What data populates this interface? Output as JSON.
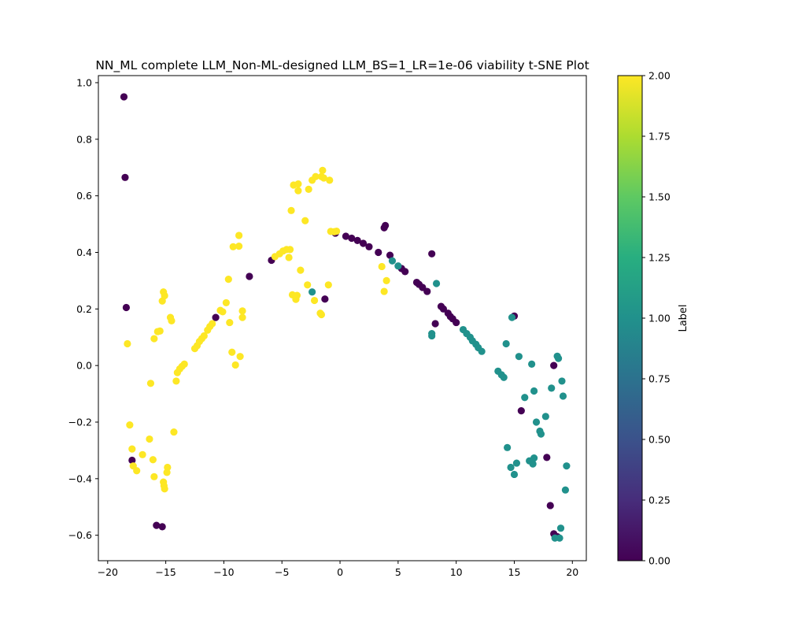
{
  "chart_data": {
    "type": "scatter",
    "title": "NN_ML complete LLM_Non-ML-designed LLM_BS=1_LR=1e-06 viability t-SNE Plot",
    "xlabel": "",
    "ylabel": "",
    "xlim": [
      -20.8,
      21.2
    ],
    "ylim": [
      -0.69,
      1.025
    ],
    "xticks": [
      -20,
      -15,
      -10,
      -5,
      0,
      5,
      10,
      15,
      20
    ],
    "xtick_labels": [
      "−20",
      "−15",
      "−10",
      "−5",
      "0",
      "5",
      "10",
      "15",
      "20"
    ],
    "yticks": [
      -0.6,
      -0.4,
      -0.2,
      0.0,
      0.2,
      0.4,
      0.6,
      0.8,
      1.0
    ],
    "ytick_labels": [
      "−0.6",
      "−0.4",
      "−0.2",
      "0.0",
      "0.2",
      "0.4",
      "0.6",
      "0.8",
      "1.0"
    ],
    "grid": false,
    "colormap": "viridis",
    "colorbar": {
      "label": "Label",
      "range": [
        0.0,
        2.0
      ],
      "ticks": [
        0.0,
        0.25,
        0.5,
        0.75,
        1.0,
        1.25,
        1.5,
        1.75,
        2.0
      ],
      "tick_labels": [
        "0.00",
        "0.25",
        "0.50",
        "0.75",
        "1.00",
        "1.25",
        "1.50",
        "1.75",
        "2.00"
      ]
    },
    "label_colors": {
      "0": "#440154",
      "1": "#21918c",
      "2": "#fde725"
    },
    "series": [
      {
        "label": 0,
        "points": [
          [
            -18.6,
            0.95
          ],
          [
            -18.5,
            0.665
          ],
          [
            -18.4,
            0.205
          ],
          [
            -17.9,
            -0.335
          ],
          [
            -15.8,
            -0.565
          ],
          [
            -15.3,
            -0.57
          ],
          [
            -10.7,
            0.17
          ],
          [
            -7.8,
            0.315
          ],
          [
            -5.9,
            0.372
          ],
          [
            -1.3,
            0.235
          ],
          [
            -0.4,
            0.468
          ],
          [
            0.5,
            0.457
          ],
          [
            1.0,
            0.45
          ],
          [
            1.5,
            0.442
          ],
          [
            2.0,
            0.432
          ],
          [
            2.5,
            0.42
          ],
          [
            3.3,
            0.4
          ],
          [
            3.8,
            0.487
          ],
          [
            3.9,
            0.495
          ],
          [
            4.3,
            0.39
          ],
          [
            5.3,
            0.343
          ],
          [
            5.6,
            0.332
          ],
          [
            6.6,
            0.294
          ],
          [
            6.8,
            0.287
          ],
          [
            7.1,
            0.276
          ],
          [
            7.5,
            0.262
          ],
          [
            7.9,
            0.395
          ],
          [
            8.2,
            0.148
          ],
          [
            8.7,
            0.209
          ],
          [
            8.9,
            0.2
          ],
          [
            9.3,
            0.185
          ],
          [
            9.5,
            0.173
          ],
          [
            9.7,
            0.165
          ],
          [
            10.0,
            0.152
          ],
          [
            15.0,
            0.175
          ],
          [
            15.6,
            -0.16
          ],
          [
            17.8,
            -0.325
          ],
          [
            18.1,
            -0.495
          ],
          [
            18.4,
            0.0
          ],
          [
            18.4,
            -0.595
          ],
          [
            18.7,
            -0.605
          ]
        ]
      },
      {
        "label": 1,
        "points": [
          [
            -2.4,
            0.26
          ],
          [
            4.5,
            0.37
          ],
          [
            5.0,
            0.352
          ],
          [
            7.9,
            0.105
          ],
          [
            7.9,
            0.113
          ],
          [
            8.3,
            0.29
          ],
          [
            10.6,
            0.127
          ],
          [
            10.9,
            0.113
          ],
          [
            11.2,
            0.1
          ],
          [
            11.4,
            0.087
          ],
          [
            11.7,
            0.075
          ],
          [
            11.9,
            0.063
          ],
          [
            12.2,
            0.05
          ],
          [
            13.6,
            -0.02
          ],
          [
            13.9,
            -0.033
          ],
          [
            14.1,
            -0.042
          ],
          [
            14.3,
            0.077
          ],
          [
            14.4,
            -0.29
          ],
          [
            14.7,
            -0.36
          ],
          [
            14.8,
            0.17
          ],
          [
            15.0,
            -0.385
          ],
          [
            15.2,
            -0.345
          ],
          [
            15.4,
            0.032
          ],
          [
            15.9,
            -0.113
          ],
          [
            16.3,
            -0.337
          ],
          [
            16.5,
            0.005
          ],
          [
            16.6,
            -0.348
          ],
          [
            16.7,
            -0.327
          ],
          [
            16.7,
            -0.09
          ],
          [
            16.9,
            -0.2
          ],
          [
            17.2,
            -0.232
          ],
          [
            17.3,
            -0.242
          ],
          [
            17.7,
            -0.18
          ],
          [
            18.2,
            -0.08
          ],
          [
            18.7,
            0.033
          ],
          [
            18.8,
            0.025
          ],
          [
            18.5,
            -0.61
          ],
          [
            18.9,
            -0.61
          ],
          [
            19.0,
            -0.575
          ],
          [
            19.1,
            -0.055
          ],
          [
            19.2,
            -0.108
          ],
          [
            19.4,
            -0.44
          ],
          [
            19.5,
            -0.355
          ]
        ]
      },
      {
        "label": 2,
        "points": [
          [
            -18.3,
            0.077
          ],
          [
            -18.1,
            -0.21
          ],
          [
            -17.9,
            -0.295
          ],
          [
            -17.8,
            -0.355
          ],
          [
            -17.5,
            -0.372
          ],
          [
            -17.0,
            -0.315
          ],
          [
            -16.4,
            -0.26
          ],
          [
            -16.3,
            -0.063
          ],
          [
            -16.1,
            -0.333
          ],
          [
            -16.0,
            -0.393
          ],
          [
            -16.0,
            0.095
          ],
          [
            -15.7,
            0.12
          ],
          [
            -15.5,
            0.122
          ],
          [
            -15.3,
            0.228
          ],
          [
            -15.2,
            0.26
          ],
          [
            -15.1,
            0.247
          ],
          [
            -15.2,
            -0.412
          ],
          [
            -15.15,
            -0.425
          ],
          [
            -15.1,
            -0.436
          ],
          [
            -14.9,
            -0.378
          ],
          [
            -14.85,
            -0.36
          ],
          [
            -14.6,
            0.17
          ],
          [
            -14.5,
            0.158
          ],
          [
            -14.3,
            -0.235
          ],
          [
            -14.1,
            -0.055
          ],
          [
            -14.0,
            -0.025
          ],
          [
            -13.8,
            -0.012
          ],
          [
            -13.6,
            -0.003
          ],
          [
            -13.4,
            0.005
          ],
          [
            -12.5,
            0.06
          ],
          [
            -12.3,
            0.07
          ],
          [
            -12.1,
            0.085
          ],
          [
            -11.9,
            0.095
          ],
          [
            -11.7,
            0.105
          ],
          [
            -11.4,
            0.125
          ],
          [
            -11.2,
            0.138
          ],
          [
            -11.0,
            0.148
          ],
          [
            -10.3,
            0.195
          ],
          [
            -10.1,
            0.19
          ],
          [
            -9.8,
            0.222
          ],
          [
            -9.6,
            0.305
          ],
          [
            -9.5,
            0.152
          ],
          [
            -9.3,
            0.047
          ],
          [
            -9.2,
            0.42
          ],
          [
            -9.0,
            0.002
          ],
          [
            -8.7,
            0.46
          ],
          [
            -8.7,
            0.422
          ],
          [
            -8.6,
            0.032
          ],
          [
            -8.4,
            0.193
          ],
          [
            -8.4,
            0.17
          ],
          [
            -5.6,
            0.385
          ],
          [
            -5.2,
            0.395
          ],
          [
            -4.9,
            0.405
          ],
          [
            -4.6,
            0.41
          ],
          [
            -4.3,
            0.41
          ],
          [
            -4.4,
            0.382
          ],
          [
            -4.2,
            0.548
          ],
          [
            -4.1,
            0.25
          ],
          [
            -3.8,
            0.234
          ],
          [
            -3.7,
            0.248
          ],
          [
            -4.0,
            0.638
          ],
          [
            -3.6,
            0.642
          ],
          [
            -3.6,
            0.618
          ],
          [
            -3.4,
            0.337
          ],
          [
            -3.0,
            0.512
          ],
          [
            -2.8,
            0.285
          ],
          [
            -2.7,
            0.623
          ],
          [
            -2.4,
            0.655
          ],
          [
            -2.2,
            0.23
          ],
          [
            -2.1,
            0.668
          ],
          [
            -1.7,
            0.185
          ],
          [
            -1.6,
            0.18
          ],
          [
            -1.6,
            0.668
          ],
          [
            -1.5,
            0.69
          ],
          [
            -1.4,
            0.663
          ],
          [
            -1.0,
            0.285
          ],
          [
            -0.9,
            0.655
          ],
          [
            -0.8,
            0.474
          ],
          [
            -0.5,
            0.473
          ],
          [
            -0.3,
            0.475
          ],
          [
            3.6,
            0.35
          ],
          [
            3.8,
            0.262
          ],
          [
            4.0,
            0.3
          ]
        ]
      }
    ]
  }
}
